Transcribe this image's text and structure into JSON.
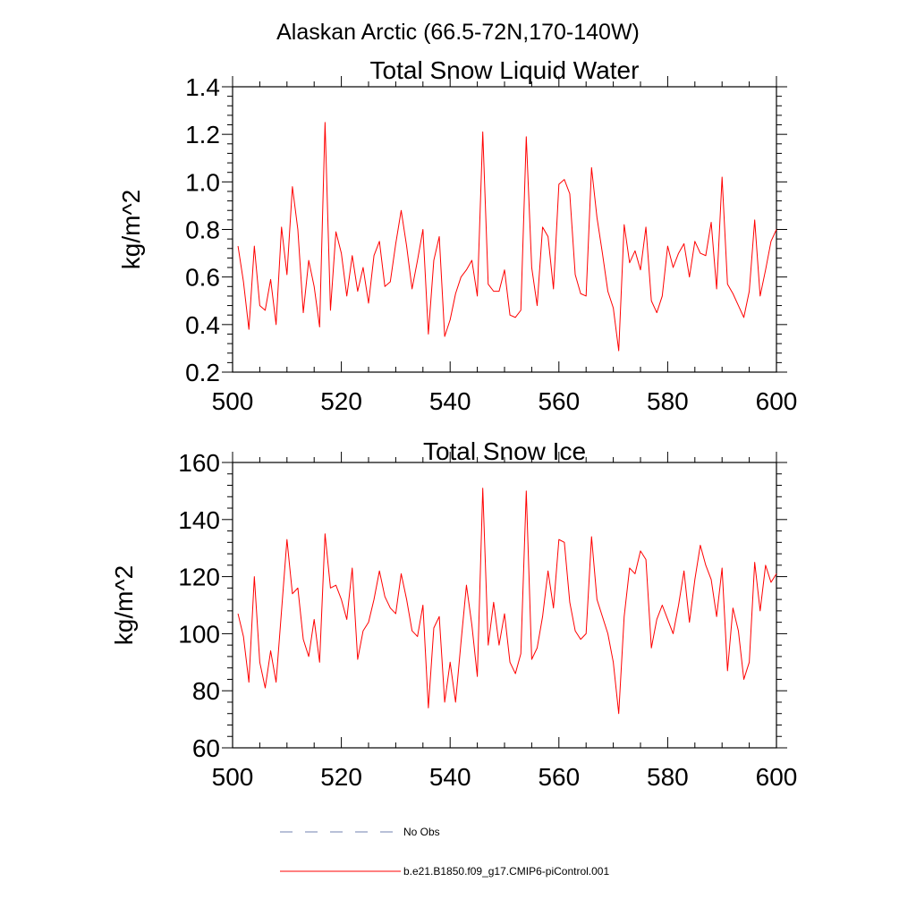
{
  "figure": {
    "suptitle": "Alaskan Arctic (66.5-72N,170-140W)"
  },
  "chart_data": [
    {
      "type": "line",
      "title": "Total Snow Liquid Water",
      "xlabel": "",
      "ylabel": "kg/m^2",
      "xlim": [
        500,
        600
      ],
      "ylim": [
        0.2,
        1.4
      ],
      "xticks": [
        500,
        520,
        540,
        560,
        580,
        600
      ],
      "yticks": [
        0.2,
        0.4,
        0.6,
        0.8,
        1.0,
        1.2,
        1.4
      ],
      "ytick_labels": [
        "0.2",
        "0.4",
        "0.6",
        "0.8",
        "1.0",
        "1.2",
        "1.4"
      ],
      "grid": false,
      "series": [
        {
          "name": "b.e21.B1850.f09_g17.CMIP6-piControl.001",
          "color": "#ff0000",
          "x": [
            501,
            502,
            503,
            504,
            505,
            506,
            507,
            508,
            509,
            510,
            511,
            512,
            513,
            514,
            515,
            516,
            517,
            518,
            519,
            520,
            521,
            522,
            523,
            524,
            525,
            526,
            527,
            528,
            529,
            530,
            531,
            532,
            533,
            534,
            535,
            536,
            537,
            538,
            539,
            540,
            541,
            542,
            543,
            544,
            545,
            546,
            547,
            548,
            549,
            550,
            551,
            552,
            553,
            554,
            555,
            556,
            557,
            558,
            559,
            560,
            561,
            562,
            563,
            564,
            565,
            566,
            567,
            568,
            569,
            570,
            571,
            572,
            573,
            574,
            575,
            576,
            577,
            578,
            579,
            580,
            581,
            582,
            583,
            584,
            585,
            586,
            587,
            588,
            589,
            590,
            591,
            592,
            593,
            594,
            595,
            596,
            597,
            598,
            599,
            600
          ],
          "values": [
            0.73,
            0.58,
            0.38,
            0.73,
            0.48,
            0.46,
            0.59,
            0.4,
            0.81,
            0.61,
            0.98,
            0.8,
            0.45,
            0.67,
            0.56,
            0.39,
            1.25,
            0.46,
            0.79,
            0.7,
            0.52,
            0.69,
            0.54,
            0.64,
            0.49,
            0.69,
            0.75,
            0.56,
            0.58,
            0.74,
            0.88,
            0.73,
            0.55,
            0.67,
            0.8,
            0.36,
            0.67,
            0.77,
            0.35,
            0.42,
            0.53,
            0.6,
            0.63,
            0.67,
            0.52,
            1.21,
            0.57,
            0.54,
            0.54,
            0.63,
            0.44,
            0.43,
            0.46,
            1.19,
            0.64,
            0.48,
            0.81,
            0.77,
            0.55,
            0.99,
            1.01,
            0.95,
            0.61,
            0.53,
            0.52,
            1.06,
            0.85,
            0.7,
            0.54,
            0.47,
            0.29,
            0.82,
            0.66,
            0.71,
            0.63,
            0.81,
            0.5,
            0.45,
            0.52,
            0.73,
            0.64,
            0.7,
            0.74,
            0.6,
            0.75,
            0.7,
            0.69,
            0.83,
            0.55,
            1.02,
            0.57,
            0.53,
            0.48,
            0.43,
            0.54,
            0.84,
            0.52,
            0.63,
            0.75,
            0.8
          ]
        }
      ]
    },
    {
      "type": "line",
      "title": "Total Snow Ice",
      "xlabel": "",
      "ylabel": "kg/m^2",
      "xlim": [
        500,
        600
      ],
      "ylim": [
        60,
        160
      ],
      "xticks": [
        500,
        520,
        540,
        560,
        580,
        600
      ],
      "yticks": [
        60,
        80,
        100,
        120,
        140,
        160
      ],
      "ytick_labels": [
        "60",
        "80",
        "100",
        "120",
        "140",
        "160"
      ],
      "grid": false,
      "series": [
        {
          "name": "b.e21.B1850.f09_g17.CMIP6-piControl.001",
          "color": "#ff0000",
          "x": [
            501,
            502,
            503,
            504,
            505,
            506,
            507,
            508,
            509,
            510,
            511,
            512,
            513,
            514,
            515,
            516,
            517,
            518,
            519,
            520,
            521,
            522,
            523,
            524,
            525,
            526,
            527,
            528,
            529,
            530,
            531,
            532,
            533,
            534,
            535,
            536,
            537,
            538,
            539,
            540,
            541,
            542,
            543,
            544,
            545,
            546,
            547,
            548,
            549,
            550,
            551,
            552,
            553,
            554,
            555,
            556,
            557,
            558,
            559,
            560,
            561,
            562,
            563,
            564,
            565,
            566,
            567,
            568,
            569,
            570,
            571,
            572,
            573,
            574,
            575,
            576,
            577,
            578,
            579,
            580,
            581,
            582,
            583,
            584,
            585,
            586,
            587,
            588,
            589,
            590,
            591,
            592,
            593,
            594,
            595,
            596,
            597,
            598,
            599,
            600
          ],
          "values": [
            107,
            99,
            83,
            120,
            90,
            81,
            94,
            83,
            108,
            133,
            114,
            116,
            98,
            92,
            105,
            90,
            135,
            116,
            117,
            112,
            105,
            123,
            91,
            101,
            104,
            112,
            122,
            113,
            109,
            107,
            121,
            112,
            101,
            99,
            110,
            74,
            102,
            106,
            76,
            90,
            76,
            97,
            117,
            103,
            85,
            151,
            96,
            111,
            96,
            107,
            90,
            86,
            93,
            150,
            91,
            95,
            106,
            122,
            109,
            133,
            132,
            111,
            101,
            98,
            100,
            134,
            112,
            106,
            100,
            90,
            72,
            106,
            123,
            121,
            129,
            126,
            95,
            105,
            110,
            105,
            100,
            110,
            122,
            104,
            119,
            131,
            124,
            119,
            106,
            123,
            87,
            109,
            101,
            84,
            90,
            125,
            108,
            124,
            118,
            121
          ]
        },
        {
          "name": "No Obs",
          "color": "#7080b0",
          "style": "dashed",
          "x": [],
          "values": []
        }
      ]
    }
  ],
  "legend": {
    "items": [
      {
        "label": "No Obs",
        "color": "#7080b0",
        "style": "dashed"
      },
      {
        "label": "b.e21.B1850.f09_g17.CMIP6-piControl.001",
        "color": "#ff0000",
        "style": "solid"
      }
    ]
  }
}
